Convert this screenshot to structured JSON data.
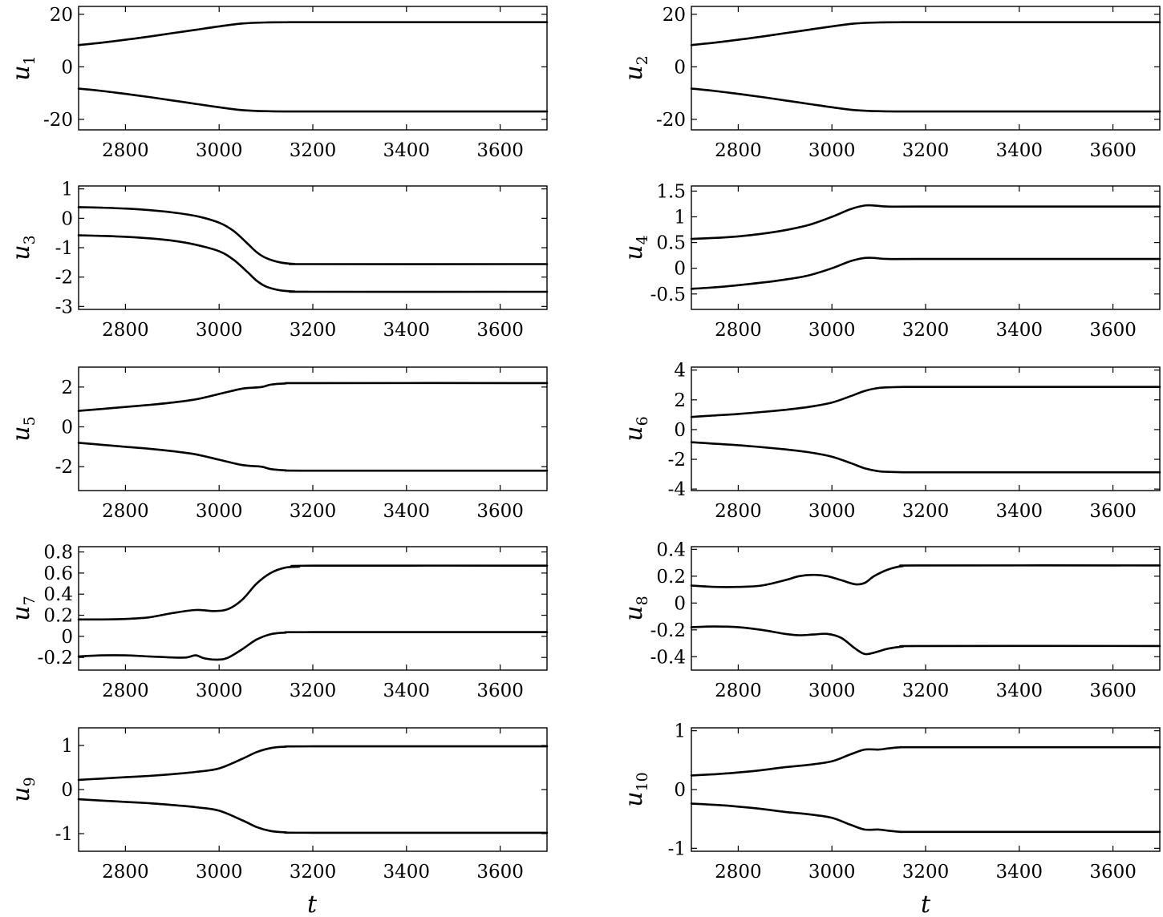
{
  "chart_data": [
    {
      "type": "line",
      "ylabel": "u",
      "ylabel_sub": "1",
      "xlim": [
        2700,
        3700
      ],
      "ylim": [
        -24,
        23
      ],
      "xticks": [
        2800,
        3000,
        3200,
        3400,
        3600
      ],
      "xtick_labels": [
        "2800",
        "3000",
        "3200",
        "3400",
        "3600"
      ],
      "yticks": [
        20,
        0,
        -20
      ],
      "ytick_labels": [
        "20",
        "0",
        "-20"
      ],
      "series": [
        {
          "x": [
            2700,
            2750,
            2800,
            2850,
            2900,
            2950,
            3000,
            3050,
            3100,
            3150,
            3200,
            3700
          ],
          "y": [
            8.3,
            9.2,
            10.3,
            11.5,
            12.8,
            14.1,
            15.4,
            16.5,
            16.9,
            17.0,
            17.0,
            17.0
          ]
        },
        {
          "x": [
            2700,
            2750,
            2800,
            2850,
            2900,
            2950,
            3000,
            3050,
            3100,
            3150,
            3200,
            3700
          ],
          "y": [
            -8.3,
            -9.2,
            -10.3,
            -11.5,
            -12.8,
            -14.1,
            -15.4,
            -16.5,
            -16.9,
            -17.0,
            -17.0,
            -17.0
          ]
        }
      ]
    },
    {
      "type": "line",
      "ylabel": "u",
      "ylabel_sub": "2",
      "xlim": [
        2700,
        3700
      ],
      "ylim": [
        -24,
        23
      ],
      "xticks": [
        2800,
        3000,
        3200,
        3400,
        3600
      ],
      "xtick_labels": [
        "2800",
        "3000",
        "3200",
        "3400",
        "3600"
      ],
      "yticks": [
        20,
        0,
        -20
      ],
      "ytick_labels": [
        "20",
        "0",
        "-20"
      ],
      "series": [
        {
          "x": [
            2700,
            2750,
            2800,
            2850,
            2900,
            2950,
            3000,
            3050,
            3100,
            3150,
            3200,
            3700
          ],
          "y": [
            8.3,
            9.2,
            10.3,
            11.5,
            12.8,
            14.1,
            15.4,
            16.5,
            16.9,
            17.0,
            17.0,
            17.0
          ]
        },
        {
          "x": [
            2700,
            2750,
            2800,
            2850,
            2900,
            2950,
            3000,
            3050,
            3100,
            3150,
            3200,
            3700
          ],
          "y": [
            -8.3,
            -9.2,
            -10.3,
            -11.5,
            -12.8,
            -14.1,
            -15.4,
            -16.5,
            -16.9,
            -17.0,
            -17.0,
            -17.0
          ]
        }
      ]
    },
    {
      "type": "line",
      "ylabel": "u",
      "ylabel_sub": "3",
      "xlim": [
        2700,
        3700
      ],
      "ylim": [
        -3.1,
        1.1
      ],
      "xticks": [
        2800,
        3000,
        3200,
        3400,
        3600
      ],
      "xtick_labels": [
        "2800",
        "3000",
        "3200",
        "3400",
        "3600"
      ],
      "yticks": [
        1,
        0,
        -1,
        -2,
        -3
      ],
      "ytick_labels": [
        "1",
        "0",
        "-1",
        "-2",
        "-3"
      ],
      "series": [
        {
          "x": [
            2700,
            2750,
            2800,
            2850,
            2900,
            2950,
            3000,
            3030,
            3060,
            3080,
            3100,
            3130,
            3160,
            3200,
            3700
          ],
          "y": [
            0.38,
            0.36,
            0.33,
            0.28,
            0.2,
            0.08,
            -0.15,
            -0.42,
            -0.85,
            -1.15,
            -1.35,
            -1.5,
            -1.55,
            -1.56,
            -1.56
          ]
        },
        {
          "x": [
            2700,
            2750,
            2800,
            2850,
            2900,
            2950,
            3000,
            3030,
            3060,
            3080,
            3100,
            3130,
            3160,
            3200,
            3700
          ],
          "y": [
            -0.58,
            -0.6,
            -0.63,
            -0.68,
            -0.76,
            -0.9,
            -1.12,
            -1.4,
            -1.82,
            -2.12,
            -2.32,
            -2.45,
            -2.49,
            -2.5,
            -2.5
          ]
        }
      ]
    },
    {
      "type": "line",
      "ylabel": "u",
      "ylabel_sub": "4",
      "xlim": [
        2700,
        3700
      ],
      "ylim": [
        -0.8,
        1.6
      ],
      "xticks": [
        2800,
        3000,
        3200,
        3400,
        3600
      ],
      "xtick_labels": [
        "2800",
        "3000",
        "3200",
        "3400",
        "3600"
      ],
      "yticks": [
        1.5,
        1,
        0.5,
        0,
        -0.5
      ],
      "ytick_labels": [
        "1.5",
        "1",
        "0.5",
        "0",
        "-0.5"
      ],
      "series": [
        {
          "x": [
            2700,
            2750,
            2800,
            2850,
            2900,
            2950,
            3000,
            3040,
            3070,
            3090,
            3120,
            3200,
            3700
          ],
          "y": [
            0.57,
            0.59,
            0.62,
            0.67,
            0.74,
            0.84,
            1.0,
            1.15,
            1.22,
            1.22,
            1.2,
            1.2,
            1.2
          ]
        },
        {
          "x": [
            2700,
            2750,
            2800,
            2850,
            2900,
            2950,
            3000,
            3040,
            3070,
            3090,
            3120,
            3200,
            3700
          ],
          "y": [
            -0.4,
            -0.37,
            -0.33,
            -0.28,
            -0.22,
            -0.14,
            0.0,
            0.14,
            0.2,
            0.2,
            0.18,
            0.18,
            0.18
          ]
        }
      ]
    },
    {
      "type": "line",
      "ylabel": "u",
      "ylabel_sub": "5",
      "xlim": [
        2700,
        3700
      ],
      "ylim": [
        -3.2,
        3.0
      ],
      "xticks": [
        2800,
        3000,
        3200,
        3400,
        3600
      ],
      "xtick_labels": [
        "2800",
        "3000",
        "3200",
        "3400",
        "3600"
      ],
      "yticks": [
        2,
        0,
        -2
      ],
      "ytick_labels": [
        "2",
        "0",
        "-2"
      ],
      "series": [
        {
          "x": [
            2700,
            2750,
            2800,
            2850,
            2900,
            2950,
            3000,
            3050,
            3090,
            3110,
            3140,
            3200,
            3700
          ],
          "y": [
            0.8,
            0.9,
            1.0,
            1.1,
            1.22,
            1.38,
            1.65,
            1.92,
            2.0,
            2.12,
            2.18,
            2.2,
            2.2
          ]
        },
        {
          "x": [
            2700,
            2750,
            2800,
            2850,
            2900,
            2950,
            3000,
            3050,
            3090,
            3110,
            3140,
            3200,
            3700
          ],
          "y": [
            -0.8,
            -0.9,
            -1.0,
            -1.1,
            -1.22,
            -1.38,
            -1.65,
            -1.92,
            -2.0,
            -2.12,
            -2.18,
            -2.2,
            -2.2
          ]
        }
      ]
    },
    {
      "type": "line",
      "ylabel": "u",
      "ylabel_sub": "6",
      "xlim": [
        2700,
        3700
      ],
      "ylim": [
        -4.1,
        4.2
      ],
      "xticks": [
        2800,
        3000,
        3200,
        3400,
        3600
      ],
      "xtick_labels": [
        "2800",
        "3000",
        "3200",
        "3400",
        "3600"
      ],
      "yticks": [
        4,
        2,
        0,
        -2,
        -4
      ],
      "ytick_labels": [
        "4",
        "2",
        "0",
        "-2",
        "-4"
      ],
      "series": [
        {
          "x": [
            2700,
            2750,
            2800,
            2850,
            2900,
            2950,
            3000,
            3040,
            3070,
            3100,
            3130,
            3160,
            3200,
            3700
          ],
          "y": [
            0.85,
            0.95,
            1.05,
            1.18,
            1.33,
            1.52,
            1.82,
            2.25,
            2.6,
            2.8,
            2.85,
            2.87,
            2.87,
            2.87
          ]
        },
        {
          "x": [
            2700,
            2750,
            2800,
            2850,
            2900,
            2950,
            3000,
            3040,
            3070,
            3100,
            3130,
            3160,
            3200,
            3700
          ],
          "y": [
            -0.85,
            -0.95,
            -1.05,
            -1.18,
            -1.33,
            -1.52,
            -1.82,
            -2.25,
            -2.6,
            -2.8,
            -2.85,
            -2.87,
            -2.87,
            -2.87
          ]
        }
      ]
    },
    {
      "type": "line",
      "ylabel": "u",
      "ylabel_sub": "7",
      "xlim": [
        2700,
        3700
      ],
      "ylim": [
        -0.32,
        0.85
      ],
      "xticks": [
        2800,
        3000,
        3200,
        3400,
        3600
      ],
      "xtick_labels": [
        "2800",
        "3000",
        "3200",
        "3400",
        "3600"
      ],
      "yticks": [
        0.8,
        0.6,
        0.4,
        0.2,
        0,
        -0.2
      ],
      "ytick_labels": [
        "0.8",
        "0.6",
        "0.4",
        "0.2",
        "0",
        "-0.2"
      ],
      "series": [
        {
          "x": [
            2700,
            2750,
            2800,
            2850,
            2900,
            2950,
            2990,
            3020,
            3050,
            3080,
            3110,
            3140,
            3170,
            3200,
            3700
          ],
          "y": [
            0.16,
            0.16,
            0.165,
            0.18,
            0.22,
            0.25,
            0.24,
            0.26,
            0.35,
            0.5,
            0.6,
            0.65,
            0.66,
            0.67,
            0.67
          ]
        },
        {
          "x": [
            2700,
            2750,
            2800,
            2850,
            2900,
            2930,
            2950,
            2970,
            3000,
            3020,
            3050,
            3080,
            3110,
            3140,
            3200,
            3700
          ],
          "y": [
            -0.19,
            -0.18,
            -0.18,
            -0.19,
            -0.2,
            -0.2,
            -0.18,
            -0.21,
            -0.22,
            -0.2,
            -0.12,
            -0.03,
            0.02,
            0.035,
            0.04,
            0.04
          ]
        }
      ]
    },
    {
      "type": "line",
      "ylabel": "u",
      "ylabel_sub": "8",
      "xlim": [
        2700,
        3700
      ],
      "ylim": [
        -0.5,
        0.42
      ],
      "xticks": [
        2800,
        3000,
        3200,
        3400,
        3600
      ],
      "xtick_labels": [
        "2800",
        "3000",
        "3200",
        "3400",
        "3600"
      ],
      "yticks": [
        0.4,
        0.2,
        0,
        -0.2,
        -0.4
      ],
      "ytick_labels": [
        "0.4",
        "0.2",
        "0",
        "-0.2",
        "-0.4"
      ],
      "series": [
        {
          "x": [
            2700,
            2750,
            2800,
            2850,
            2900,
            2930,
            2960,
            2990,
            3020,
            3050,
            3070,
            3090,
            3120,
            3150,
            3200,
            3700
          ],
          "y": [
            0.13,
            0.12,
            0.12,
            0.13,
            0.17,
            0.2,
            0.21,
            0.2,
            0.17,
            0.14,
            0.15,
            0.2,
            0.25,
            0.275,
            0.28,
            0.28
          ]
        },
        {
          "x": [
            2700,
            2750,
            2800,
            2850,
            2900,
            2930,
            2960,
            2990,
            3020,
            3050,
            3070,
            3090,
            3120,
            3150,
            3200,
            3700
          ],
          "y": [
            -0.18,
            -0.175,
            -0.18,
            -0.2,
            -0.23,
            -0.24,
            -0.235,
            -0.23,
            -0.26,
            -0.34,
            -0.38,
            -0.37,
            -0.34,
            -0.325,
            -0.32,
            -0.32
          ]
        }
      ]
    },
    {
      "type": "line",
      "ylabel": "u",
      "ylabel_sub": "9",
      "xlim": [
        2700,
        3700
      ],
      "ylim": [
        -1.4,
        1.4
      ],
      "xticks": [
        2800,
        3000,
        3200,
        3400,
        3600
      ],
      "xtick_labels": [
        "2800",
        "3000",
        "3200",
        "3400",
        "3600"
      ],
      "yticks": [
        1,
        0,
        -1
      ],
      "ytick_labels": [
        "1",
        "0",
        "-1"
      ],
      "series": [
        {
          "x": [
            2700,
            2750,
            2800,
            2850,
            2900,
            2950,
            3000,
            3050,
            3080,
            3110,
            3140,
            3200,
            3700
          ],
          "y": [
            0.22,
            0.25,
            0.28,
            0.31,
            0.35,
            0.4,
            0.48,
            0.7,
            0.85,
            0.94,
            0.97,
            0.98,
            0.98
          ]
        },
        {
          "x": [
            2700,
            2750,
            2800,
            2850,
            2900,
            2950,
            3000,
            3050,
            3080,
            3110,
            3140,
            3200,
            3700
          ],
          "y": [
            -0.22,
            -0.25,
            -0.28,
            -0.31,
            -0.35,
            -0.4,
            -0.48,
            -0.7,
            -0.85,
            -0.94,
            -0.97,
            -0.98,
            -0.98
          ]
        }
      ]
    },
    {
      "type": "line",
      "ylabel": "u",
      "ylabel_sub": "10",
      "xlim": [
        2700,
        3700
      ],
      "ylim": [
        -1.05,
        1.05
      ],
      "xticks": [
        2800,
        3000,
        3200,
        3400,
        3600
      ],
      "xtick_labels": [
        "2800",
        "3000",
        "3200",
        "3400",
        "3600"
      ],
      "yticks": [
        1,
        0,
        -1
      ],
      "ytick_labels": [
        "1",
        "0",
        "-1"
      ],
      "series": [
        {
          "x": [
            2700,
            2750,
            2800,
            2850,
            2900,
            2950,
            3000,
            3040,
            3070,
            3100,
            3120,
            3150,
            3200,
            3700
          ],
          "y": [
            0.24,
            0.26,
            0.29,
            0.33,
            0.38,
            0.42,
            0.48,
            0.6,
            0.68,
            0.68,
            0.7,
            0.72,
            0.72,
            0.72
          ]
        },
        {
          "x": [
            2700,
            2750,
            2800,
            2850,
            2900,
            2950,
            3000,
            3040,
            3070,
            3100,
            3120,
            3150,
            3200,
            3700
          ],
          "y": [
            -0.24,
            -0.26,
            -0.29,
            -0.33,
            -0.38,
            -0.42,
            -0.48,
            -0.6,
            -0.68,
            -0.68,
            -0.7,
            -0.72,
            -0.72,
            -0.72
          ]
        }
      ]
    }
  ],
  "xlabels": {
    "left": "t",
    "right": "t"
  }
}
